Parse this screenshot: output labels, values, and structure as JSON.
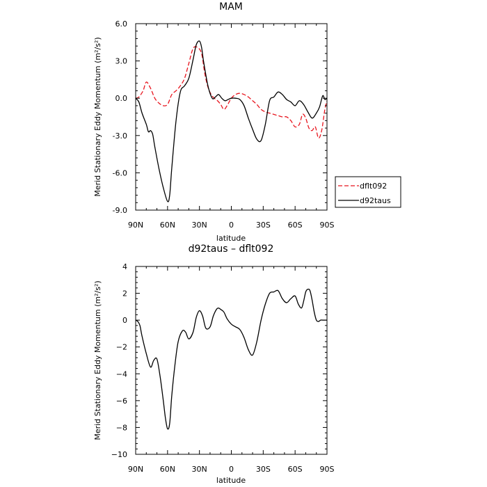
{
  "chart_data": [
    {
      "type": "line",
      "title": "MAM",
      "xlabel": "latitude",
      "ylabel": "Merid Stationary Eddy Momentum (m²/s²)",
      "xlim": [
        90,
        -90
      ],
      "ylim": [
        -9,
        6
      ],
      "xticks": [
        90,
        60,
        30,
        0,
        -30,
        -60,
        -90
      ],
      "xtick_labels": [
        "90N",
        "60N",
        "30N",
        "0",
        "30S",
        "60S",
        "90S"
      ],
      "yticks": [
        -9,
        -6,
        -3,
        0,
        3,
        6
      ],
      "ytick_labels": [
        "-9.0",
        "-6.0",
        "-3.0",
        "0.0",
        "3.0",
        "6.0"
      ],
      "legend": "right",
      "series": [
        {
          "name": "dflt092",
          "color": "#e8141d",
          "dash": "dashed",
          "x": [
            90,
            87,
            83,
            80,
            76,
            72,
            68,
            64,
            60,
            56,
            52,
            48,
            44,
            40,
            36,
            32,
            28,
            25,
            22,
            19,
            16,
            13,
            10,
            7,
            4,
            0,
            -4,
            -8,
            -12,
            -16,
            -20,
            -24,
            -28,
            -32,
            -36,
            -40,
            -44,
            -48,
            -52,
            -56,
            -60,
            -64,
            -67,
            -70,
            -73,
            -76,
            -79,
            -82,
            -85,
            -88,
            -90
          ],
          "y": [
            0.0,
            0.1,
            0.6,
            1.3,
            0.8,
            0.0,
            -0.4,
            -0.6,
            -0.5,
            0.3,
            0.6,
            1.0,
            1.6,
            2.8,
            4.0,
            4.1,
            3.6,
            2.0,
            0.9,
            0.3,
            0.0,
            -0.2,
            -0.5,
            -0.9,
            -0.6,
            0.0,
            0.3,
            0.4,
            0.3,
            0.1,
            -0.2,
            -0.5,
            -0.9,
            -1.1,
            -1.2,
            -1.3,
            -1.4,
            -1.5,
            -1.5,
            -1.8,
            -2.3,
            -2.1,
            -1.3,
            -1.6,
            -2.4,
            -2.6,
            -2.3,
            -3.2,
            -2.6,
            -0.9,
            -0.2
          ]
        },
        {
          "name": "d92taus",
          "color": "#000000",
          "dash": "solid",
          "x": [
            90,
            87,
            84,
            80,
            78,
            76,
            74,
            72,
            68,
            64,
            60,
            58,
            56,
            52,
            48,
            44,
            40,
            36,
            33,
            30,
            28,
            26,
            22,
            18,
            15,
            12,
            9,
            6,
            3,
            0,
            -4,
            -8,
            -12,
            -16,
            -20,
            -24,
            -28,
            -32,
            -36,
            -40,
            -44,
            -48,
            -52,
            -56,
            -60,
            -64,
            -68,
            -72,
            -76,
            -80,
            -83,
            -86,
            -88,
            -90
          ],
          "y": [
            0.0,
            -0.3,
            -1.2,
            -2.1,
            -2.7,
            -2.6,
            -2.9,
            -3.9,
            -5.7,
            -7.2,
            -8.3,
            -7.8,
            -5.6,
            -1.8,
            0.5,
            1.0,
            1.6,
            3.1,
            4.3,
            4.6,
            4.1,
            2.9,
            1.0,
            0.0,
            0.1,
            0.3,
            0.0,
            -0.2,
            -0.1,
            0.0,
            0.0,
            -0.1,
            -0.6,
            -1.6,
            -2.5,
            -3.3,
            -3.4,
            -2.1,
            -0.2,
            0.1,
            0.5,
            0.3,
            -0.1,
            -0.3,
            -0.6,
            -0.2,
            -0.5,
            -1.1,
            -1.6,
            -1.2,
            -0.7,
            0.2,
            -0.1,
            0.0
          ]
        }
      ]
    },
    {
      "type": "line",
      "title": "d92taus – dflt092",
      "xlabel": "latitude",
      "ylabel": "Merid Stationary Eddy Momentum (m²/s²)",
      "xlim": [
        90,
        -90
      ],
      "ylim": [
        -10,
        4
      ],
      "xticks": [
        90,
        60,
        30,
        0,
        -30,
        -60,
        -90
      ],
      "xtick_labels": [
        "90N",
        "60N",
        "30N",
        "0",
        "30S",
        "60S",
        "90S"
      ],
      "yticks": [
        -10,
        -8,
        -6,
        -4,
        -2,
        0,
        2,
        4
      ],
      "ytick_labels": [
        "−10",
        "−8",
        "−6",
        "−4",
        "−2",
        "0",
        "2",
        "4"
      ],
      "series": [
        {
          "name": "",
          "color": "#000000",
          "dash": "solid",
          "x": [
            90,
            88,
            86,
            84,
            80,
            76,
            73,
            70,
            67,
            64,
            62,
            60,
            58,
            56,
            53,
            50,
            46,
            43,
            40,
            36,
            33,
            30,
            27,
            24,
            20,
            17,
            14,
            12,
            10,
            7,
            4,
            0,
            -4,
            -8,
            -12,
            -16,
            -20,
            -24,
            -28,
            -32,
            -36,
            -40,
            -44,
            -48,
            -52,
            -56,
            -60,
            -63,
            -66,
            -68,
            -70,
            -72,
            -74,
            -76,
            -78,
            -80,
            -82,
            -84,
            -86,
            -88,
            -90
          ],
          "y": [
            0.0,
            -0.1,
            -0.4,
            -1.2,
            -2.5,
            -3.5,
            -3.0,
            -2.9,
            -4.2,
            -6.0,
            -7.3,
            -8.1,
            -7.7,
            -5.6,
            -3.3,
            -1.6,
            -0.8,
            -0.9,
            -1.4,
            -0.9,
            0.2,
            0.7,
            0.3,
            -0.6,
            -0.5,
            0.3,
            0.8,
            0.9,
            0.8,
            0.6,
            0.1,
            -0.3,
            -0.5,
            -0.7,
            -1.3,
            -2.2,
            -2.6,
            -1.6,
            0.0,
            1.2,
            2.0,
            2.1,
            2.2,
            1.6,
            1.3,
            1.6,
            1.8,
            1.2,
            0.9,
            1.4,
            2.1,
            2.3,
            2.2,
            1.5,
            0.6,
            0.0,
            -0.1,
            0.0,
            0.0,
            0.0,
            0.0
          ]
        }
      ]
    }
  ]
}
